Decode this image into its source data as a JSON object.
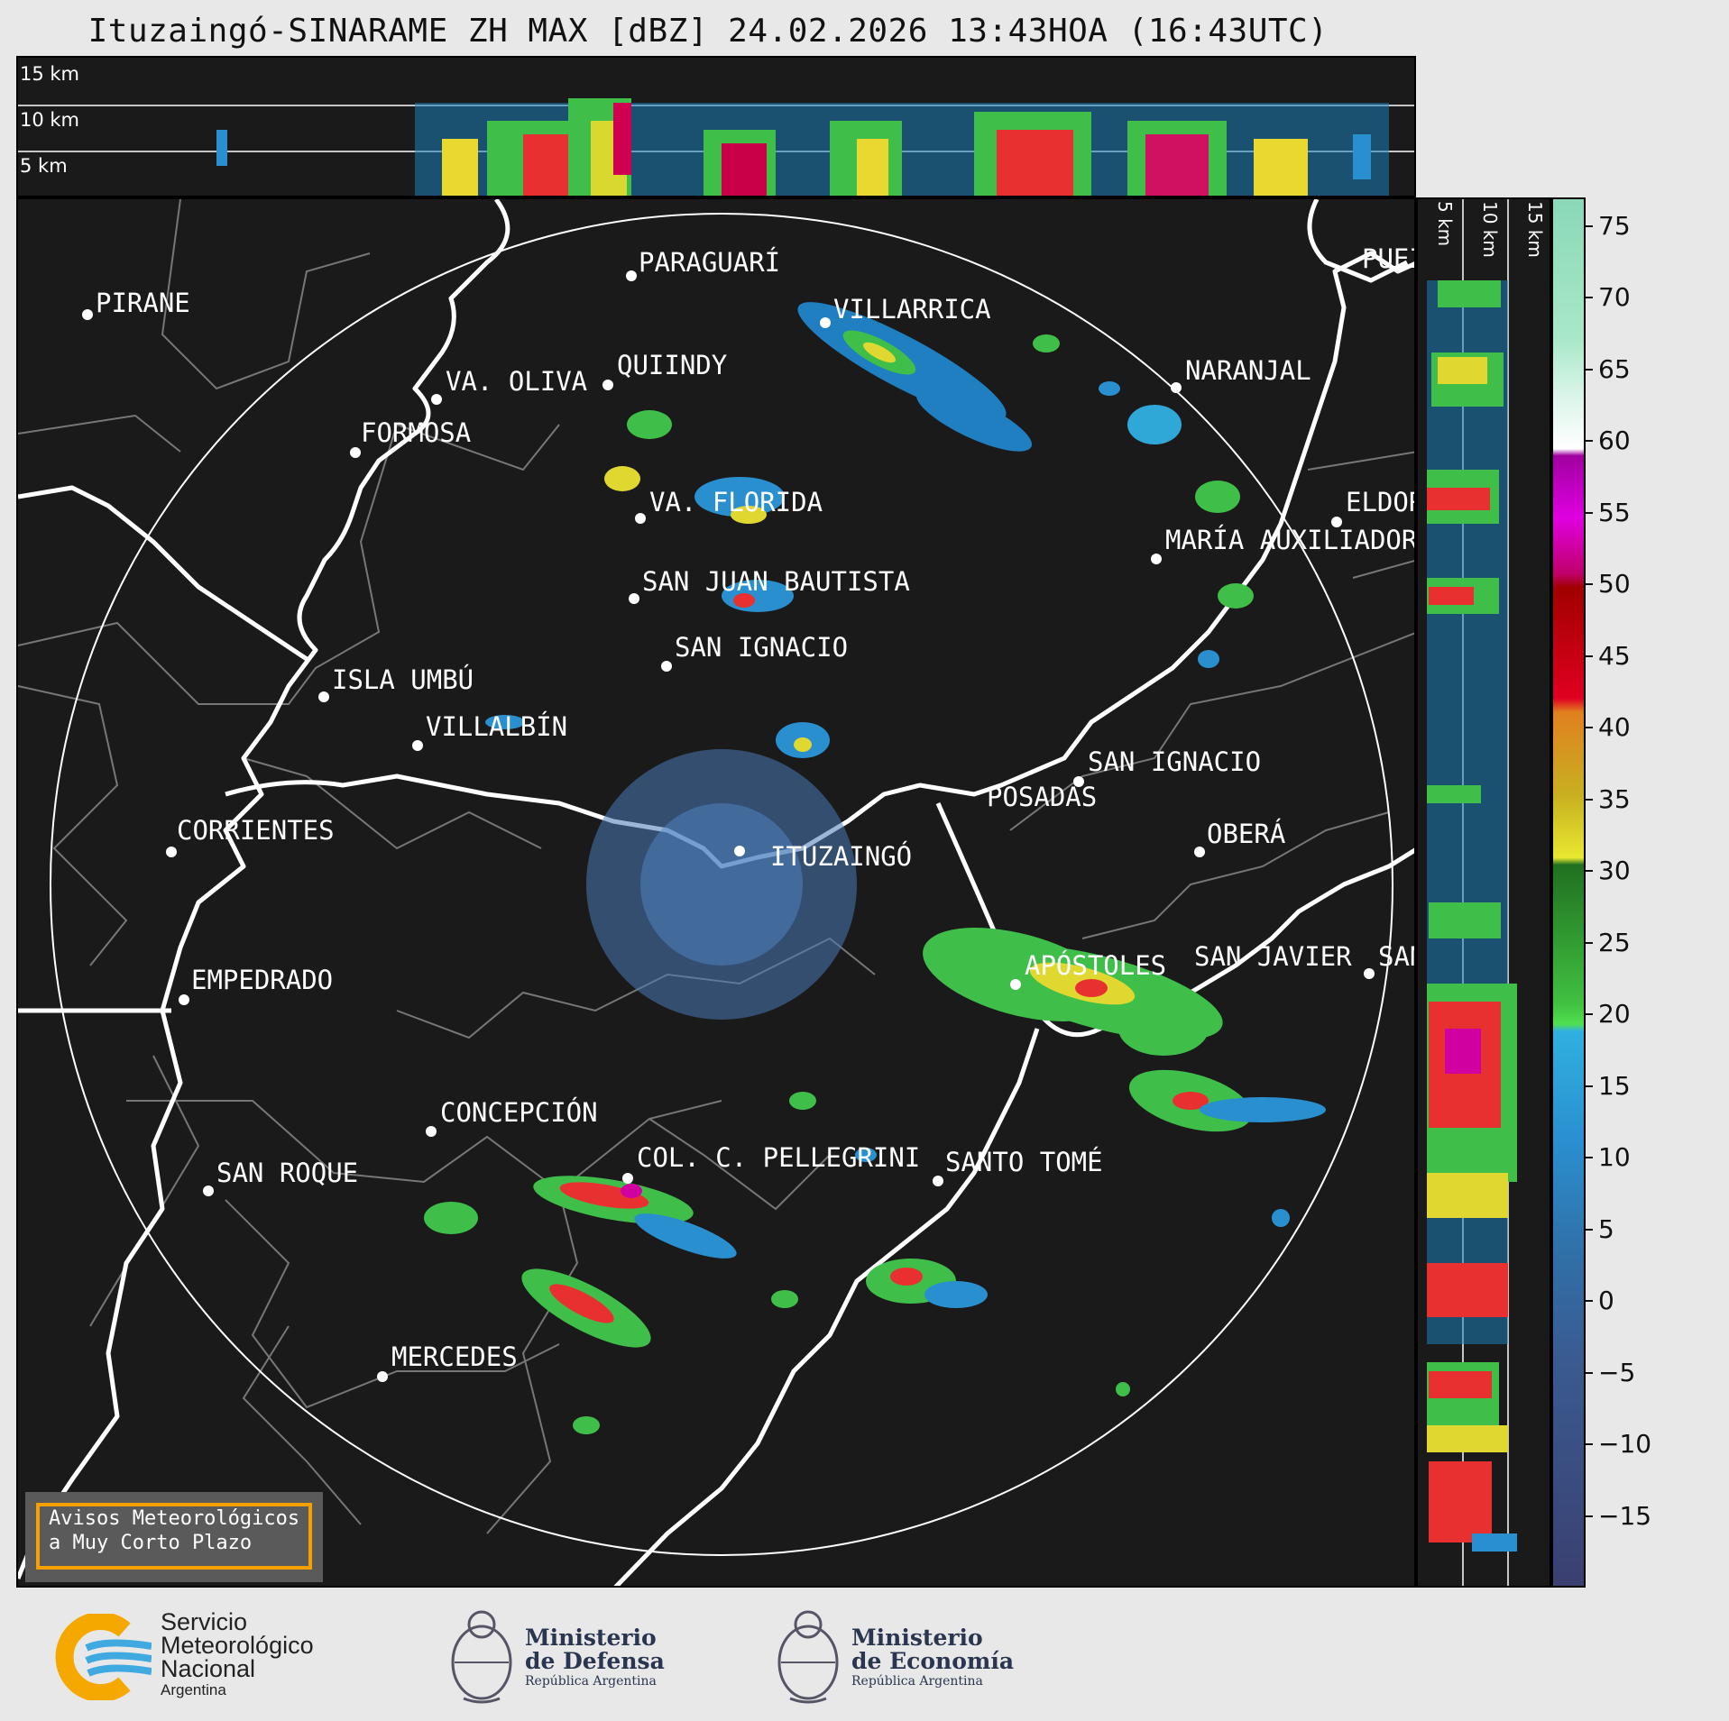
{
  "title": "Ituzaingó-SINARAME ZH MAX [dBZ] 24.02.2026 13:43HOA (16:43UTC)",
  "height_panel": {
    "top_labels": [
      "15 km",
      "10 km",
      "5 km"
    ],
    "side_labels": [
      "5 km",
      "10 km",
      "15 km"
    ]
  },
  "cities": [
    {
      "name": "PIRANE"
    },
    {
      "name": "PARAGUARÍ"
    },
    {
      "name": "VILLARRICA"
    },
    {
      "name": "QUIINDY"
    },
    {
      "name": "VA. OLIVA"
    },
    {
      "name": "FORMOSA"
    },
    {
      "name": "NARANJAL"
    },
    {
      "name": "VA. FLORIDA"
    },
    {
      "name": "ELDOR"
    },
    {
      "name": "MARÍA AUXILIADOR"
    },
    {
      "name": "SAN JUAN BAUTISTA"
    },
    {
      "name": "SAN IGNACIO"
    },
    {
      "name": "ISLA UMBÚ"
    },
    {
      "name": "VILLALBÍN"
    },
    {
      "name": "SAN IGNACIO"
    },
    {
      "name": "POSADAS"
    },
    {
      "name": "CORRIENTES"
    },
    {
      "name": "ITUZAINGÓ"
    },
    {
      "name": "OBERÁ"
    },
    {
      "name": "APÓSTOLES"
    },
    {
      "name": "SAN JAVIER"
    },
    {
      "name": "SAN"
    },
    {
      "name": "EMPEDRADO"
    },
    {
      "name": "CONCEPCIÓN"
    },
    {
      "name": "COL. C. PELLEGRINI"
    },
    {
      "name": "SANTO TOMÉ"
    },
    {
      "name": "SAN ROQUE"
    },
    {
      "name": "MERCEDES"
    },
    {
      "name": "PUEI"
    }
  ],
  "colorbar": {
    "unit": "dBZ",
    "ticks": [
      "75",
      "70",
      "65",
      "60",
      "55",
      "50",
      "45",
      "40",
      "35",
      "30",
      "25",
      "20",
      "15",
      "10",
      "5",
      "0",
      "−5",
      "−10",
      "−15"
    ],
    "min": -20,
    "max": 77
  },
  "warning_box": {
    "line1": "Avisos Meteorológicos",
    "line2": "a Muy Corto Plazo"
  },
  "logos": {
    "smn": {
      "line1": "Servicio",
      "line2": "Meteorológico",
      "line3": "Nacional",
      "line4": "Argentina"
    },
    "defensa": {
      "line1": "Ministerio",
      "line2": "de Defensa",
      "line3": "República Argentina"
    },
    "economia": {
      "line1": "Ministerio",
      "line2": "de Economía",
      "line3": "República Argentina"
    }
  }
}
